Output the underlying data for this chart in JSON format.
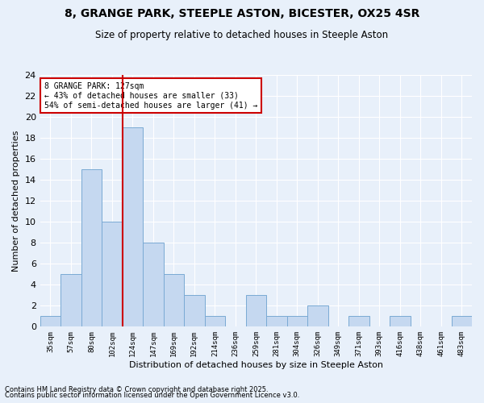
{
  "title1": "8, GRANGE PARK, STEEPLE ASTON, BICESTER, OX25 4SR",
  "title2": "Size of property relative to detached houses in Steeple Aston",
  "xlabel": "Distribution of detached houses by size in Steeple Aston",
  "ylabel": "Number of detached properties",
  "bin_labels": [
    "35sqm",
    "57sqm",
    "80sqm",
    "102sqm",
    "124sqm",
    "147sqm",
    "169sqm",
    "192sqm",
    "214sqm",
    "236sqm",
    "259sqm",
    "281sqm",
    "304sqm",
    "326sqm",
    "349sqm",
    "371sqm",
    "393sqm",
    "416sqm",
    "438sqm",
    "461sqm",
    "483sqm"
  ],
  "bar_values": [
    1,
    5,
    15,
    10,
    19,
    8,
    5,
    3,
    1,
    0,
    3,
    1,
    1,
    2,
    0,
    1,
    0,
    1,
    0,
    0,
    1
  ],
  "bar_color": "#c5d8f0",
  "bar_edge_color": "#7aaad4",
  "background_color": "#e8f0fa",
  "grid_color": "#ffffff",
  "redline_index": 4,
  "annotation_text": "8 GRANGE PARK: 127sqm\n← 43% of detached houses are smaller (33)\n54% of semi-detached houses are larger (41) →",
  "annotation_box_color": "#ffffff",
  "annotation_box_edge_color": "#cc0000",
  "redline_color": "#cc0000",
  "ylim": [
    0,
    24
  ],
  "yticks": [
    0,
    2,
    4,
    6,
    8,
    10,
    12,
    14,
    16,
    18,
    20,
    22,
    24
  ],
  "footnote1": "Contains HM Land Registry data © Crown copyright and database right 2025.",
  "footnote2": "Contains public sector information licensed under the Open Government Licence v3.0."
}
